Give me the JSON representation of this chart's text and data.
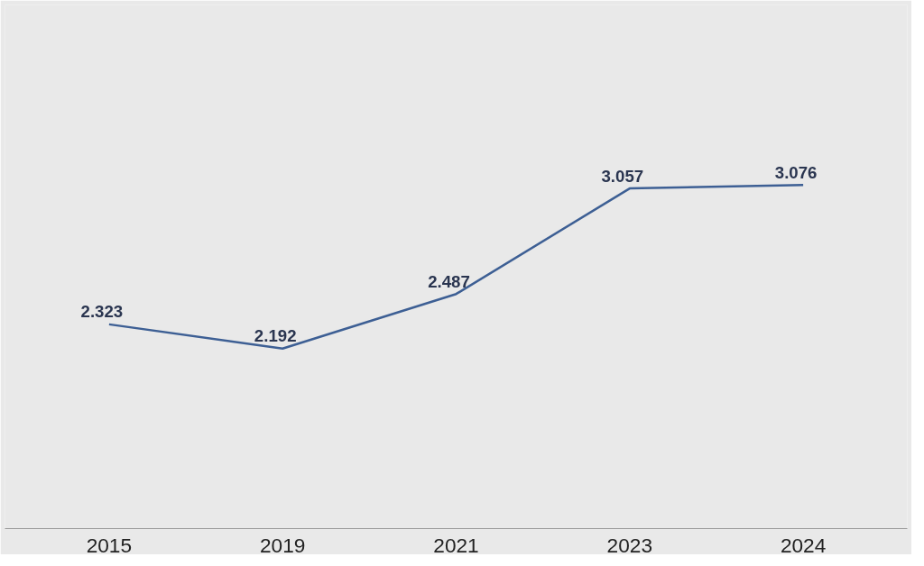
{
  "chart_data": {
    "type": "line",
    "categories": [
      "2015",
      "2019",
      "2021",
      "2023",
      "2024"
    ],
    "series": [
      {
        "color": "#3d5f94",
        "values": [
          2.323,
          2.192,
          2.487,
          3.057,
          3.076
        ]
      }
    ],
    "data_labels": true,
    "tick_labels": "x",
    "marker": "none",
    "line_style": "solid"
  }
}
